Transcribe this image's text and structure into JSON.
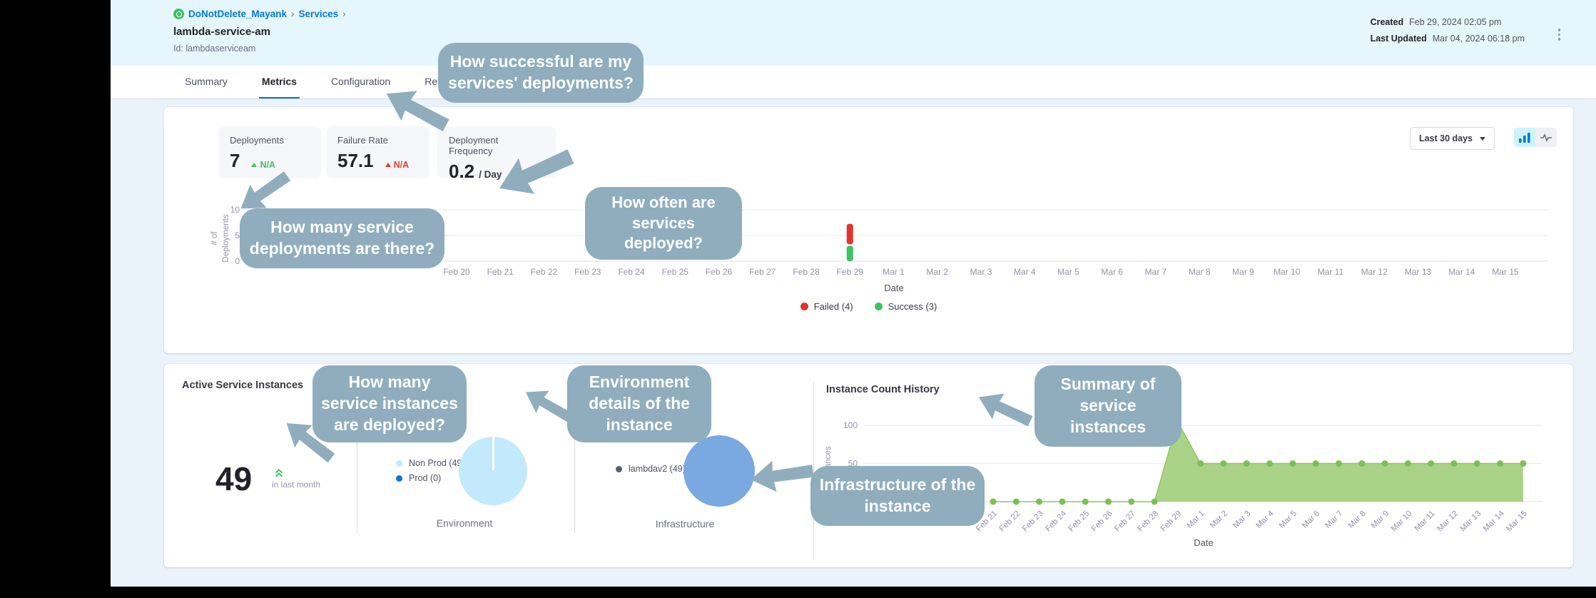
{
  "colors": {
    "primary_blue": "#0278d5",
    "header_bg": "#e6f6fd",
    "success_green": "#3dc264",
    "failed_red": "#e0352c",
    "trend_red": "#dd3b32",
    "area_green_fill": "#a3cf7d",
    "area_green_line": "#8fc463",
    "area_dot_green": "#7cbf54",
    "pie_nonprod_blue": "#c3eafc",
    "pie_prod_blue": "#0278d5",
    "pie_infra_blue": "#7aa8e1",
    "infra_dot": "#526070",
    "callout_bg": "#8fadbd",
    "axis_text": "#9293ab"
  },
  "header": {
    "breadcrumb": {
      "project": "DoNotDelete_Mayank",
      "separator": "›",
      "section": "Services"
    },
    "title": "lambda-service-am",
    "id_line": "Id: lambdaserviceam",
    "created_label": "Created",
    "created_value": "Feb 29, 2024 02:05 pm",
    "updated_label": "Last Updated",
    "updated_value": "Mar 04, 2024 06:18 pm"
  },
  "tabs": [
    {
      "label": "Summary"
    },
    {
      "label": "Metrics"
    },
    {
      "label": "Configuration"
    },
    {
      "label": "Referenced"
    }
  ],
  "active_tab": "Metrics",
  "metrics": {
    "tiles": [
      {
        "label": "Deployments",
        "value": "7",
        "suffix": "",
        "trend": "N/A"
      },
      {
        "label": "Failure Rate",
        "value": "57.1",
        "suffix": "",
        "trend": "N/A"
      },
      {
        "label": "Deployment Frequency",
        "value": "0.2",
        "suffix": "/ Day",
        "trend": "N/A"
      }
    ],
    "range_select": "Last 30 days",
    "legend": [
      {
        "label": "Failed (4)",
        "color": "#e0352c"
      },
      {
        "label": "Success (3)",
        "color": "#3dc264"
      }
    ]
  },
  "instances": {
    "section_title": "Active Service Instances",
    "count": "49",
    "count_caption": "in last month",
    "environment": {
      "legend": [
        {
          "label": "Non Prod (49)",
          "color": "#c3eafc"
        },
        {
          "label": "Prod (0)",
          "color": "#0278d5"
        }
      ],
      "axis_label": "Environment"
    },
    "infrastructure": {
      "legend": [
        {
          "label": "lambdav2 (49)",
          "color": "#526070"
        }
      ],
      "axis_label": "Infrastructure"
    },
    "history_title": "Instance Count History"
  },
  "chart_data": [
    {
      "type": "bar",
      "ylabel": "# of Deployments",
      "ylabel_lines": [
        "# of",
        "Deployments"
      ],
      "xlabel": "Date",
      "ylim": [
        0,
        10
      ],
      "yticks": [
        10,
        5,
        0
      ],
      "grid": true,
      "legend_position": "bottom",
      "x_labels": [
        "Feb 20",
        "Feb 21",
        "Feb 22",
        "Feb 23",
        "Feb 24",
        "Feb 25",
        "Feb 26",
        "Feb 27",
        "Feb 28",
        "Feb 29",
        "Mar 1",
        "Mar 2",
        "Mar 3",
        "Mar 4",
        "Mar 5",
        "Mar 6",
        "Mar 7",
        "Mar 8",
        "Mar 9",
        "Mar 10",
        "Mar 11",
        "Mar 12",
        "Mar 13",
        "Mar 14",
        "Mar 15"
      ],
      "bars": [
        {
          "x": "Feb 29",
          "segments": [
            {
              "name": "Success",
              "value": 3,
              "color": "#3dc264"
            },
            {
              "name": "Failed",
              "value": 4,
              "color": "#e0352c"
            }
          ]
        }
      ],
      "legend": [
        "Failed (4)",
        "Success (3)"
      ]
    },
    {
      "type": "area",
      "title": "Instance Count History",
      "ylabel": "Instances",
      "xlabel": "Date",
      "yticks": [
        100,
        50
      ],
      "ylim": [
        0,
        110
      ],
      "grid": true,
      "x": [
        "Feb 21",
        "Feb 22",
        "Feb 23",
        "Feb 24",
        "Feb 25",
        "Feb 26",
        "Feb 27",
        "Feb 28",
        "Feb 29",
        "Mar 1",
        "Mar 2",
        "Mar 3",
        "Mar 4",
        "Mar 5",
        "Mar 6",
        "Mar 7",
        "Mar 8",
        "Mar 9",
        "Mar 10",
        "Mar 11",
        "Mar 12",
        "Mar 13",
        "Mar 14",
        "Mar 15"
      ],
      "values": [
        0,
        0,
        0,
        0,
        0,
        0,
        0,
        0,
        105,
        50,
        50,
        50,
        50,
        50,
        50,
        50,
        50,
        50,
        50,
        50,
        50,
        50,
        50,
        50
      ],
      "fill_color": "#a3cf7d",
      "line_color": "#8fc463",
      "dot_color": "#7cbf54"
    }
  ],
  "callouts": [
    {
      "text": "How successful are my\nservices' deployments?"
    },
    {
      "text": "How often are\nservices\ndeployed?"
    },
    {
      "text": "How many service\ndeployments are there?"
    },
    {
      "text": "How many\nservice instances\nare deployed?"
    },
    {
      "text": "Environment\ndetails of the\ninstance"
    },
    {
      "text": "Summary of\nservice instances"
    },
    {
      "text": "Infrastructure of the\ninstance"
    }
  ]
}
